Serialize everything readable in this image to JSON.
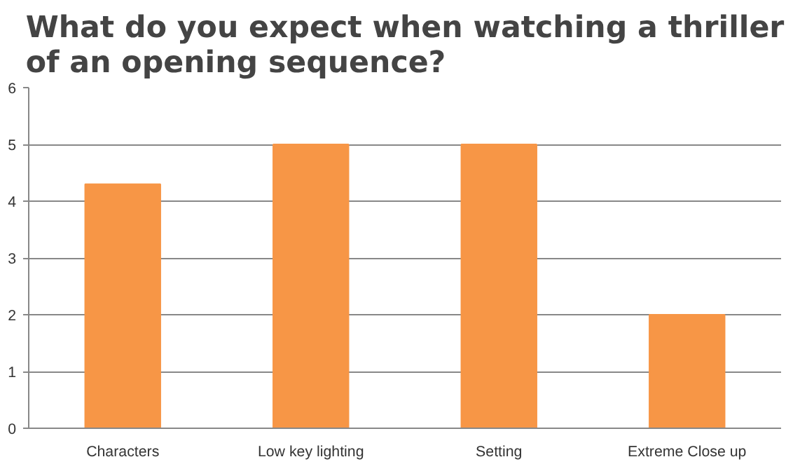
{
  "chart_data": {
    "type": "bar",
    "title": "What do you expect when watching a thriller\nof an opening sequence?",
    "categories": [
      "Characters",
      "Low key lighting",
      "Setting",
      "Extreme Close up"
    ],
    "values": [
      4.3,
      5,
      5,
      2
    ],
    "color": "#f79646",
    "ylim": [
      0,
      6
    ],
    "yticks": [
      0,
      1,
      2,
      3,
      4,
      5,
      6
    ],
    "grid": "y"
  }
}
